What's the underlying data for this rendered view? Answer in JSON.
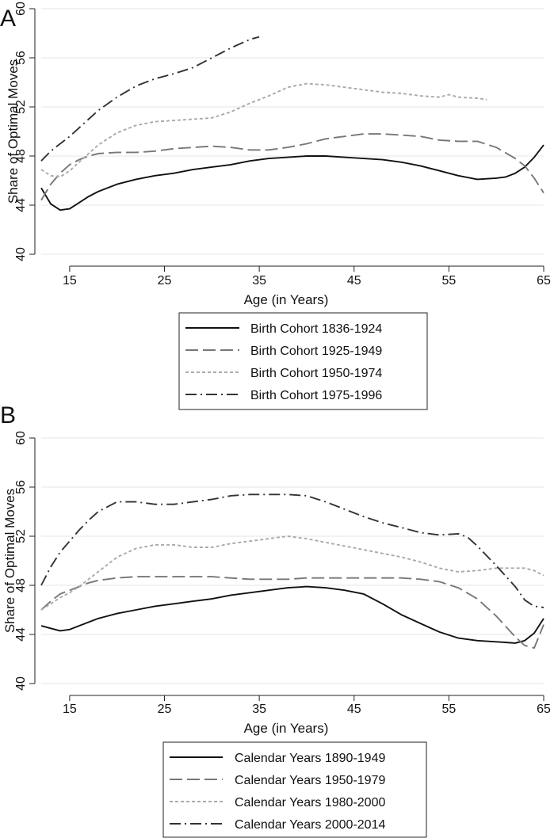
{
  "chart_data": [
    {
      "panel": "A",
      "type": "line",
      "xlabel": "Age (in Years)",
      "ylabel": "Share of Optimal Moves",
      "xlim": [
        12,
        65
      ],
      "ylim": [
        40,
        60
      ],
      "xticks": [
        15,
        25,
        35,
        45,
        55,
        65
      ],
      "yticks": [
        40,
        44,
        48,
        52,
        56,
        60
      ],
      "grid": true,
      "legend_position": "bottom",
      "series": [
        {
          "name": "Birth Cohort 1836-1924",
          "style": "solid",
          "color": "#111111",
          "x": [
            12,
            13,
            14,
            15,
            16,
            17,
            18,
            20,
            22,
            24,
            26,
            28,
            30,
            32,
            34,
            36,
            38,
            40,
            42,
            44,
            46,
            48,
            50,
            52,
            54,
            56,
            58,
            60,
            61,
            62,
            63,
            64,
            65
          ],
          "y": [
            45.4,
            44.1,
            43.6,
            43.7,
            44.2,
            44.7,
            45.1,
            45.7,
            46.1,
            46.4,
            46.6,
            46.9,
            47.1,
            47.3,
            47.6,
            47.8,
            47.9,
            48.0,
            48.0,
            47.9,
            47.8,
            47.7,
            47.5,
            47.2,
            46.8,
            46.4,
            46.1,
            46.2,
            46.3,
            46.6,
            47.1,
            47.9,
            48.9
          ]
        },
        {
          "name": "Birth Cohort 1925-1949",
          "style": "long-dash",
          "color": "#777777",
          "x": [
            12,
            13,
            14,
            15,
            16,
            17,
            18,
            20,
            22,
            24,
            26,
            28,
            30,
            32,
            34,
            36,
            38,
            40,
            42,
            44,
            46,
            48,
            50,
            52,
            54,
            56,
            58,
            60,
            62,
            63,
            64,
            65
          ],
          "y": [
            44.4,
            45.7,
            46.6,
            47.3,
            47.7,
            48.0,
            48.2,
            48.3,
            48.3,
            48.4,
            48.6,
            48.7,
            48.8,
            48.7,
            48.5,
            48.5,
            48.7,
            49.0,
            49.4,
            49.6,
            49.8,
            49.8,
            49.7,
            49.6,
            49.3,
            49.2,
            49.2,
            48.7,
            47.8,
            47.2,
            46.2,
            45.0
          ]
        },
        {
          "name": "Birth Cohort 1950-1974",
          "style": "short-dash",
          "color": "#aaaaaa",
          "x": [
            12,
            13,
            14,
            15,
            16,
            17,
            18,
            20,
            22,
            24,
            26,
            28,
            30,
            32,
            34,
            36,
            38,
            40,
            42,
            44,
            46,
            48,
            50,
            52,
            54,
            55,
            56,
            58,
            59
          ],
          "y": [
            46.9,
            46.4,
            46.3,
            46.8,
            47.5,
            48.2,
            48.9,
            49.9,
            50.5,
            50.8,
            50.9,
            51.0,
            51.1,
            51.6,
            52.3,
            52.9,
            53.6,
            53.9,
            53.8,
            53.6,
            53.4,
            53.2,
            53.1,
            52.9,
            52.8,
            53.0,
            52.8,
            52.7,
            52.6
          ]
        },
        {
          "name": "Birth Cohort 1975-1996",
          "style": "dash-dot",
          "color": "#333333",
          "x": [
            12,
            13,
            14,
            15,
            16,
            17,
            18,
            20,
            22,
            24,
            26,
            28,
            30,
            32,
            34,
            35
          ],
          "y": [
            47.6,
            48.4,
            49.0,
            49.6,
            50.3,
            51.0,
            51.7,
            52.8,
            53.7,
            54.3,
            54.7,
            55.2,
            56.0,
            56.8,
            57.5,
            57.7
          ]
        }
      ]
    },
    {
      "panel": "B",
      "type": "line",
      "xlabel": "Age (in Years)",
      "ylabel": "Share of Optimal Moves",
      "xlim": [
        12,
        65
      ],
      "ylim": [
        40,
        60
      ],
      "xticks": [
        15,
        25,
        35,
        45,
        55,
        65
      ],
      "yticks": [
        40,
        44,
        48,
        52,
        56,
        60
      ],
      "grid": true,
      "legend_position": "bottom",
      "series": [
        {
          "name": "Calendar Years 1890-1949",
          "style": "solid",
          "color": "#111111",
          "x": [
            12,
            13,
            14,
            15,
            16,
            17,
            18,
            20,
            22,
            24,
            26,
            28,
            30,
            32,
            34,
            36,
            38,
            40,
            42,
            44,
            46,
            48,
            50,
            52,
            54,
            56,
            58,
            60,
            62,
            63,
            64,
            65
          ],
          "y": [
            44.7,
            44.5,
            44.3,
            44.4,
            44.7,
            45.0,
            45.3,
            45.7,
            46.0,
            46.3,
            46.5,
            46.7,
            46.9,
            47.2,
            47.4,
            47.6,
            47.8,
            47.9,
            47.8,
            47.6,
            47.3,
            46.5,
            45.6,
            44.9,
            44.2,
            43.7,
            43.5,
            43.4,
            43.3,
            43.5,
            44.1,
            45.3
          ]
        },
        {
          "name": "Calendar Years 1950-1979",
          "style": "long-dash",
          "color": "#777777",
          "x": [
            12,
            13,
            14,
            15,
            16,
            17,
            18,
            20,
            22,
            24,
            26,
            28,
            30,
            32,
            34,
            36,
            38,
            40,
            42,
            44,
            46,
            48,
            50,
            52,
            54,
            56,
            58,
            60,
            62,
            63,
            64,
            65
          ],
          "y": [
            46.0,
            46.7,
            47.3,
            47.6,
            47.9,
            48.2,
            48.4,
            48.6,
            48.7,
            48.7,
            48.7,
            48.7,
            48.7,
            48.6,
            48.5,
            48.5,
            48.5,
            48.6,
            48.6,
            48.6,
            48.6,
            48.6,
            48.6,
            48.5,
            48.3,
            47.8,
            46.9,
            45.5,
            43.8,
            43.1,
            42.9,
            44.8
          ]
        },
        {
          "name": "Calendar Years 1980-2000",
          "style": "short-dash",
          "color": "#aaaaaa",
          "x": [
            12,
            13,
            14,
            15,
            16,
            17,
            18,
            20,
            22,
            24,
            26,
            28,
            30,
            32,
            34,
            36,
            38,
            40,
            42,
            44,
            46,
            48,
            50,
            52,
            54,
            56,
            58,
            60,
            62,
            63,
            64,
            65
          ],
          "y": [
            46.0,
            46.5,
            47.0,
            47.4,
            47.9,
            48.5,
            49.1,
            50.3,
            51.0,
            51.3,
            51.3,
            51.1,
            51.1,
            51.4,
            51.6,
            51.8,
            52.0,
            51.8,
            51.5,
            51.2,
            50.9,
            50.6,
            50.3,
            49.9,
            49.4,
            49.1,
            49.2,
            49.4,
            49.4,
            49.4,
            49.2,
            48.8
          ]
        },
        {
          "name": "Calendar Years 2000-2014",
          "style": "dash-dot",
          "color": "#333333",
          "x": [
            12,
            13,
            14,
            15,
            16,
            17,
            18,
            20,
            22,
            24,
            26,
            28,
            30,
            32,
            34,
            36,
            38,
            40,
            42,
            44,
            46,
            48,
            50,
            52,
            54,
            56,
            57,
            58,
            60,
            62,
            63,
            64,
            65
          ],
          "y": [
            48.0,
            49.5,
            50.7,
            51.6,
            52.5,
            53.3,
            54.0,
            54.8,
            54.8,
            54.6,
            54.6,
            54.8,
            55.0,
            55.3,
            55.4,
            55.4,
            55.4,
            55.3,
            54.8,
            54.2,
            53.6,
            53.1,
            52.7,
            52.3,
            52.1,
            52.2,
            51.9,
            51.2,
            49.6,
            47.9,
            46.8,
            46.3,
            46.2
          ]
        }
      ]
    }
  ]
}
